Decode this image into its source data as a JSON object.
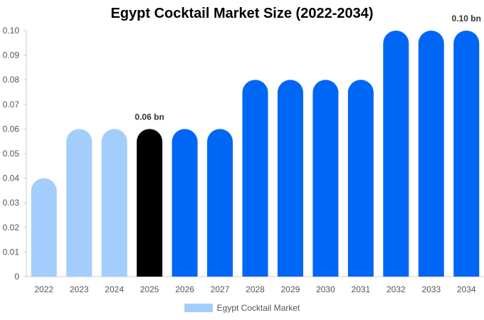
{
  "colors": {
    "historical": "#a3cdfd",
    "current": "#000000",
    "forecast": "#0066f5",
    "axis": "#cccccc",
    "grid": "#e6e6e6"
  },
  "chart_data": {
    "type": "bar",
    "title": "Egypt Cocktail Market Size (2022-2034)",
    "xlabel": "",
    "ylabel": "",
    "categories": [
      "2022",
      "2023",
      "2024",
      "2025",
      "2026",
      "2027",
      "2028",
      "2029",
      "2030",
      "2031",
      "2032",
      "2033",
      "2034"
    ],
    "series": [
      {
        "name": "Egypt Cocktail Market",
        "values": [
          0.04,
          0.06,
          0.06,
          0.06,
          0.06,
          0.06,
          0.08,
          0.08,
          0.08,
          0.08,
          0.1,
          0.1,
          0.1
        ]
      }
    ],
    "bar_color_groups": [
      "historical",
      "historical",
      "historical",
      "current",
      "forecast",
      "forecast",
      "forecast",
      "forecast",
      "forecast",
      "forecast",
      "forecast",
      "forecast",
      "forecast"
    ],
    "ylim": [
      0,
      0.1
    ],
    "yticks": [
      "0",
      "0.01",
      "0.02",
      "0.03",
      "0.04",
      "0.05",
      "0.06",
      "0.07",
      "0.08",
      "0.09",
      "0.10"
    ],
    "annotations": [
      {
        "category": "2025",
        "text": "0.06 bn"
      },
      {
        "category": "2034",
        "text": "0.10 bn"
      }
    ],
    "grid": false,
    "legend_position": "bottom-center"
  }
}
